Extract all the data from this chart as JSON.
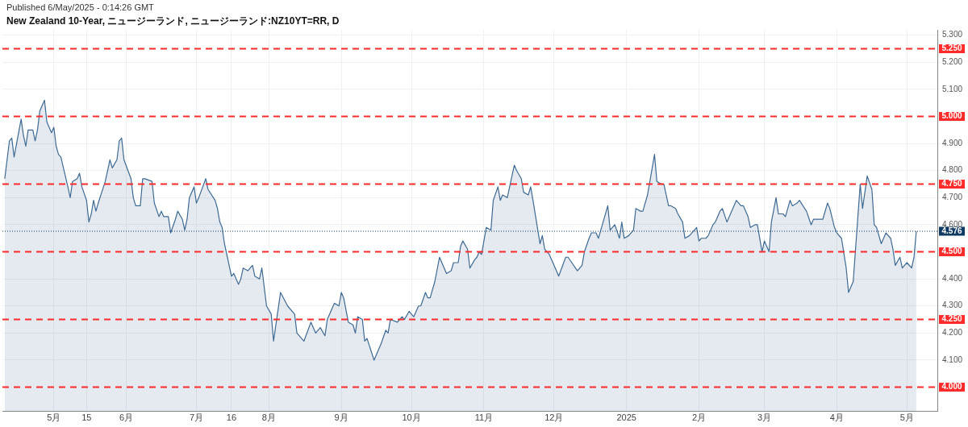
{
  "chart_data": {
    "type": "area",
    "title": "New Zealand 10-Year, ニュージーランド, ニュージーランド:NZ10YT=RR, D",
    "annotations": [
      "Published 6/May/2025 - 0:14:26 GMT"
    ],
    "x": [
      "2024-04-10",
      "2024-04-11",
      "2024-04-12",
      "2024-04-13",
      "2024-04-14",
      "2024-04-17",
      "2024-04-18",
      "2024-04-19",
      "2024-04-20",
      "2024-04-22",
      "2024-04-23",
      "2024-04-24",
      "2024-04-25",
      "2024-04-26",
      "2024-04-27",
      "2024-04-28",
      "2024-04-30",
      "2024-05-01",
      "2024-05-02",
      "2024-05-03",
      "2024-05-04",
      "2024-05-07",
      "2024-05-08",
      "2024-05-09",
      "2024-05-11",
      "2024-05-12",
      "2024-05-13",
      "2024-05-15",
      "2024-05-16",
      "2024-05-17",
      "2024-05-18",
      "2024-05-19",
      "2024-05-20",
      "2024-05-23",
      "2024-05-25",
      "2024-05-26",
      "2024-05-28",
      "2024-05-29",
      "2024-05-30",
      "2024-05-31",
      "2024-06-03",
      "2024-06-04",
      "2024-06-05",
      "2024-06-07",
      "2024-06-08",
      "2024-06-09",
      "2024-06-12",
      "2024-06-13",
      "2024-06-15",
      "2024-06-16",
      "2024-06-17",
      "2024-06-19",
      "2024-06-20",
      "2024-06-22",
      "2024-06-23",
      "2024-06-25",
      "2024-06-26",
      "2024-06-27",
      "2024-06-28",
      "2024-06-30",
      "2024-07-01",
      "2024-07-02",
      "2024-07-05",
      "2024-07-06",
      "2024-07-09",
      "2024-07-10",
      "2024-07-11",
      "2024-07-12",
      "2024-07-13",
      "2024-07-16",
      "2024-07-17",
      "2024-07-19",
      "2024-07-20",
      "2024-07-21",
      "2024-07-23",
      "2024-07-24",
      "2024-07-25",
      "2024-07-26",
      "2024-07-28",
      "2024-07-29",
      "2024-07-31",
      "2024-08-02",
      "2024-08-03",
      "2024-08-06",
      "2024-08-09",
      "2024-08-12",
      "2024-08-13",
      "2024-08-15",
      "2024-08-16",
      "2024-08-19",
      "2024-08-21",
      "2024-08-23",
      "2024-08-25",
      "2024-08-26",
      "2024-08-29",
      "2024-08-31",
      "2024-09-01",
      "2024-09-02",
      "2024-09-04",
      "2024-09-06",
      "2024-09-07",
      "2024-09-08",
      "2024-09-10",
      "2024-09-11",
      "2024-09-12",
      "2024-09-15",
      "2024-09-18",
      "2024-09-20",
      "2024-09-21",
      "2024-09-22",
      "2024-09-25",
      "2024-09-27",
      "2024-09-28",
      "2024-09-30",
      "2024-10-01",
      "2024-10-02",
      "2024-10-04",
      "2024-10-05",
      "2024-10-07",
      "2024-10-08",
      "2024-10-09",
      "2024-10-11",
      "2024-10-13",
      "2024-10-16",
      "2024-10-18",
      "2024-10-19",
      "2024-10-21",
      "2024-10-22",
      "2024-10-23",
      "2024-10-25",
      "2024-10-26",
      "2024-10-28",
      "2024-10-29",
      "2024-10-30",
      "2024-10-31",
      "2024-11-02",
      "2024-11-04",
      "2024-11-05",
      "2024-11-07",
      "2024-11-08",
      "2024-11-09",
      "2024-11-11",
      "2024-11-14",
      "2024-11-15",
      "2024-11-17",
      "2024-11-18",
      "2024-11-20",
      "2024-11-21",
      "2024-11-22",
      "2024-11-25",
      "2024-11-26",
      "2024-11-27",
      "2024-11-29",
      "2024-12-01",
      "2024-12-03",
      "2024-12-06",
      "2024-12-07",
      "2024-12-11",
      "2024-12-13",
      "2024-12-14",
      "2024-12-16",
      "2024-12-17",
      "2024-12-19",
      "2024-12-20",
      "2024-12-22",
      "2024-12-24",
      "2024-12-25",
      "2024-12-27",
      "2024-12-29",
      "2024-12-30",
      "2024-12-31",
      "2025-01-02",
      "2025-01-04",
      "2025-01-05",
      "2025-01-07",
      "2025-01-08",
      "2025-01-10",
      "2025-01-13",
      "2025-01-14",
      "2025-01-16",
      "2025-01-17",
      "2025-01-19",
      "2025-01-20",
      "2025-01-22",
      "2025-01-23",
      "2025-01-25",
      "2025-01-26",
      "2025-01-28",
      "2025-01-31",
      "2025-02-01",
      "2025-02-02",
      "2025-02-04",
      "2025-02-05",
      "2025-02-07",
      "2025-02-08",
      "2025-02-10",
      "2025-02-11",
      "2025-02-13",
      "2025-02-17",
      "2025-02-19",
      "2025-02-20",
      "2025-02-22",
      "2025-02-23",
      "2025-02-25",
      "2025-02-26",
      "2025-02-28",
      "2025-03-01",
      "2025-03-03",
      "2025-03-04",
      "2025-03-06",
      "2025-03-07",
      "2025-03-09",
      "2025-03-10",
      "2025-03-12",
      "2025-03-13",
      "2025-03-15",
      "2025-03-16",
      "2025-03-19",
      "2025-03-21",
      "2025-03-22",
      "2025-03-23",
      "2025-03-25",
      "2025-03-26",
      "2025-03-28",
      "2025-03-29",
      "2025-03-31",
      "2025-04-01",
      "2025-04-03",
      "2025-04-05",
      "2025-04-06",
      "2025-04-08",
      "2025-04-11",
      "2025-04-12",
      "2025-04-14",
      "2025-04-16",
      "2025-04-17",
      "2025-04-18",
      "2025-04-20",
      "2025-04-22",
      "2025-04-24",
      "2025-04-25",
      "2025-04-26",
      "2025-04-28",
      "2025-04-29",
      "2025-05-01",
      "2025-05-03",
      "2025-05-04",
      "2025-05-05"
    ],
    "series": [
      {
        "color": "#3e6a93",
        "values": [
          4.77,
          4.84,
          4.91,
          4.92,
          4.85,
          4.99,
          4.93,
          4.89,
          4.95,
          4.95,
          4.91,
          4.95,
          5.02,
          5.04,
          5.06,
          4.98,
          4.94,
          4.96,
          4.89,
          4.86,
          4.85,
          4.74,
          4.7,
          4.76,
          4.77,
          4.79,
          4.74,
          4.69,
          4.61,
          4.64,
          4.69,
          4.65,
          4.68,
          4.76,
          4.84,
          4.81,
          4.84,
          4.91,
          4.92,
          4.84,
          4.77,
          4.7,
          4.67,
          4.67,
          4.77,
          4.77,
          4.76,
          4.68,
          4.63,
          4.65,
          4.63,
          4.63,
          4.57,
          4.62,
          4.65,
          4.62,
          4.58,
          4.62,
          4.7,
          4.74,
          4.68,
          4.7,
          4.77,
          4.73,
          4.69,
          4.66,
          4.61,
          4.59,
          4.53,
          4.41,
          4.42,
          4.38,
          4.4,
          4.44,
          4.43,
          4.44,
          4.45,
          4.41,
          4.4,
          4.44,
          4.3,
          4.27,
          4.17,
          4.35,
          4.3,
          4.27,
          4.2,
          4.18,
          4.17,
          4.24,
          4.2,
          4.22,
          4.19,
          4.25,
          4.31,
          4.3,
          4.35,
          4.33,
          4.24,
          4.23,
          4.2,
          4.26,
          4.25,
          4.17,
          4.18,
          4.1,
          4.16,
          4.21,
          4.2,
          4.25,
          4.24,
          4.26,
          4.25,
          4.28,
          4.27,
          4.26,
          4.3,
          4.3,
          4.35,
          4.33,
          4.33,
          4.39,
          4.48,
          4.42,
          4.43,
          4.46,
          4.46,
          4.52,
          4.54,
          4.51,
          4.44,
          4.47,
          4.48,
          4.5,
          4.49,
          4.59,
          4.58,
          4.69,
          4.74,
          4.69,
          4.71,
          4.7,
          4.82,
          4.8,
          4.77,
          4.72,
          4.71,
          4.74,
          4.69,
          4.53,
          4.56,
          4.51,
          4.49,
          4.45,
          4.41,
          4.48,
          4.48,
          4.43,
          4.45,
          4.5,
          4.55,
          4.57,
          4.57,
          4.55,
          4.61,
          4.67,
          4.58,
          4.6,
          4.55,
          4.61,
          4.55,
          4.56,
          4.58,
          4.66,
          4.65,
          4.65,
          4.71,
          4.86,
          4.76,
          4.75,
          4.75,
          4.67,
          4.67,
          4.66,
          4.64,
          4.61,
          4.55,
          4.56,
          4.59,
          4.54,
          4.55,
          4.55,
          4.56,
          4.6,
          4.61,
          4.65,
          4.66,
          4.61,
          4.69,
          4.67,
          4.67,
          4.63,
          4.59,
          4.6,
          4.6,
          4.5,
          4.54,
          4.5,
          4.61,
          4.7,
          4.64,
          4.64,
          4.63,
          4.69,
          4.67,
          4.68,
          4.69,
          4.65,
          4.6,
          4.62,
          4.62,
          4.62,
          4.62,
          4.68,
          4.66,
          4.59,
          4.57,
          4.55,
          4.44,
          4.35,
          4.39,
          4.75,
          4.66,
          4.78,
          4.73,
          4.6,
          4.59,
          4.53,
          4.57,
          4.55,
          4.51,
          4.45,
          4.48,
          4.44,
          4.46,
          4.44,
          4.48,
          4.576
        ]
      }
    ],
    "xlim": [
      "2024-04-09",
      "2025-05-14"
    ],
    "xticks": [
      {
        "value": "2024-05-01",
        "label": "5月"
      },
      {
        "value": "2024-05-15",
        "label": "15"
      },
      {
        "value": "2024-06-01",
        "label": "6月"
      },
      {
        "value": "2024-07-01",
        "label": "7月"
      },
      {
        "value": "2024-07-16",
        "label": "16"
      },
      {
        "value": "2024-08-01",
        "label": "8月"
      },
      {
        "value": "2024-09-01",
        "label": "9月"
      },
      {
        "value": "2024-10-01",
        "label": "10月"
      },
      {
        "value": "2024-11-01",
        "label": "11月"
      },
      {
        "value": "2024-12-01",
        "label": "12月"
      },
      {
        "value": "2025-01-01",
        "label": "2025"
      },
      {
        "value": "2025-02-01",
        "label": "2月"
      },
      {
        "value": "2025-03-01",
        "label": "3月"
      },
      {
        "value": "2025-04-01",
        "label": "4月"
      },
      {
        "value": "2025-05-01",
        "label": "5月"
      }
    ],
    "ylim": [
      3.91,
      5.32
    ],
    "yticks": [
      {
        "value": 4.1,
        "label": "4.100"
      },
      {
        "value": 4.2,
        "label": "4.200"
      },
      {
        "value": 4.3,
        "label": "4.300"
      },
      {
        "value": 4.4,
        "label": "4.400"
      },
      {
        "value": 4.6,
        "label": "4.600"
      },
      {
        "value": 4.7,
        "label": "4.700"
      },
      {
        "value": 4.8,
        "label": "4.800"
      },
      {
        "value": 4.9,
        "label": "4.900"
      },
      {
        "value": 5.1,
        "label": "5.100"
      },
      {
        "value": 5.2,
        "label": "5.200"
      },
      {
        "value": 5.3,
        "label": "5.300"
      }
    ],
    "grid": true,
    "ref_lines": [
      {
        "axis": "y",
        "value": 5.25,
        "label": "5.250",
        "color": "#ff2a2a",
        "line_style": "dashed"
      },
      {
        "axis": "y",
        "value": 5.0,
        "label": "5.000",
        "color": "#ff2a2a",
        "line_style": "dashed"
      },
      {
        "axis": "y",
        "value": 4.75,
        "label": "4.750",
        "color": "#ff2a2a",
        "line_style": "dashed"
      },
      {
        "axis": "y",
        "value": 4.5,
        "label": "4.500",
        "color": "#ff2a2a",
        "line_style": "dashed"
      },
      {
        "axis": "y",
        "value": 4.25,
        "label": "4.250",
        "color": "#ff2a2a",
        "line_style": "dashed"
      },
      {
        "axis": "y",
        "value": 4.0,
        "label": "4.000",
        "color": "#ff2a2a",
        "line_style": "dashed"
      },
      {
        "axis": "y",
        "value": 4.576,
        "label": "4.576",
        "color": "#0f3a63",
        "line_style": "dotted"
      }
    ]
  }
}
